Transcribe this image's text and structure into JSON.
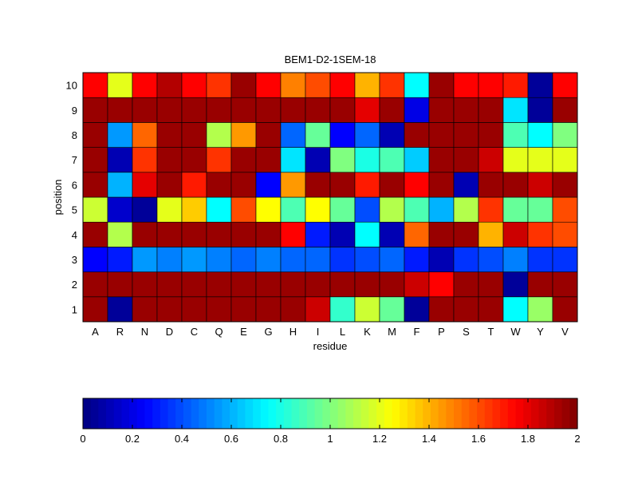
{
  "chart_data": {
    "type": "heatmap",
    "title": "BEM1-D2-1SEM-18",
    "xlabel": "residue",
    "ylabel": "position",
    "x_categories": [
      "A",
      "R",
      "N",
      "D",
      "C",
      "Q",
      "E",
      "G",
      "H",
      "I",
      "L",
      "K",
      "M",
      "F",
      "P",
      "S",
      "T",
      "W",
      "Y",
      "V"
    ],
    "y_categories": [
      "1",
      "2",
      "3",
      "4",
      "5",
      "6",
      "7",
      "8",
      "9",
      "10"
    ],
    "values": [
      [
        1.95,
        0.05,
        1.95,
        1.95,
        1.95,
        1.95,
        1.95,
        1.95,
        1.95,
        1.85,
        0.85,
        1.15,
        0.95,
        0.05,
        1.95,
        1.95,
        1.95,
        0.75,
        1.05,
        1.95
      ],
      [
        1.95,
        1.95,
        1.95,
        1.95,
        1.95,
        1.95,
        1.95,
        1.95,
        1.95,
        1.95,
        1.95,
        1.95,
        1.95,
        1.85,
        1.75,
        1.95,
        1.95,
        0.05,
        1.95,
        1.95
      ],
      [
        0.25,
        0.3,
        0.55,
        0.5,
        0.55,
        0.5,
        0.45,
        0.5,
        0.45,
        0.45,
        0.35,
        0.4,
        0.45,
        0.3,
        0.1,
        0.35,
        0.4,
        0.5,
        0.35,
        0.35
      ],
      [
        1.95,
        1.1,
        1.95,
        1.95,
        1.95,
        1.95,
        1.95,
        1.95,
        1.75,
        0.3,
        0.1,
        0.75,
        0.1,
        1.55,
        1.95,
        1.95,
        1.4,
        1.85,
        1.65,
        1.6
      ],
      [
        1.15,
        0.15,
        0.05,
        1.2,
        1.35,
        0.75,
        1.6,
        1.25,
        0.9,
        1.25,
        0.95,
        0.4,
        1.1,
        0.9,
        0.6,
        1.1,
        1.65,
        0.95,
        0.95,
        1.6
      ],
      [
        1.95,
        0.6,
        1.8,
        1.95,
        1.7,
        1.95,
        1.95,
        0.25,
        1.45,
        1.95,
        1.95,
        1.7,
        1.95,
        1.75,
        1.95,
        0.1,
        1.95,
        1.95,
        1.85,
        1.95
      ],
      [
        1.95,
        0.1,
        1.65,
        1.95,
        1.95,
        1.65,
        1.95,
        1.95,
        0.7,
        0.1,
        1.0,
        0.8,
        0.9,
        0.65,
        1.95,
        1.95,
        1.85,
        1.2,
        1.2,
        1.2
      ],
      [
        1.95,
        0.55,
        1.55,
        1.95,
        1.95,
        1.1,
        1.45,
        1.95,
        0.45,
        0.95,
        0.25,
        0.45,
        0.1,
        1.95,
        1.95,
        1.95,
        1.95,
        0.9,
        0.75,
        1.0
      ],
      [
        1.95,
        1.95,
        1.95,
        1.95,
        1.95,
        1.95,
        1.95,
        1.95,
        1.95,
        1.95,
        1.95,
        1.8,
        1.95,
        0.2,
        1.95,
        1.95,
        1.95,
        0.7,
        0.05,
        1.95
      ],
      [
        1.75,
        1.2,
        1.75,
        1.9,
        1.75,
        1.65,
        1.95,
        1.75,
        1.5,
        1.6,
        1.75,
        1.4,
        1.65,
        0.75,
        1.95,
        1.75,
        1.75,
        1.7,
        0.05,
        1.75
      ]
    ],
    "colormap": "jet",
    "clim": [
      0,
      2
    ],
    "colorbar": {
      "orientation": "horizontal",
      "location": "bottom",
      "ticks": [
        0,
        0.2,
        0.4,
        0.6,
        0.8,
        1,
        1.2,
        1.4,
        1.6,
        1.8,
        2
      ],
      "tick_labels": [
        "0",
        "0.2",
        "0.4",
        "0.6",
        "0.8",
        "1",
        "1.2",
        "1.4",
        "1.6",
        "1.8",
        "2"
      ]
    },
    "grid": false
  }
}
